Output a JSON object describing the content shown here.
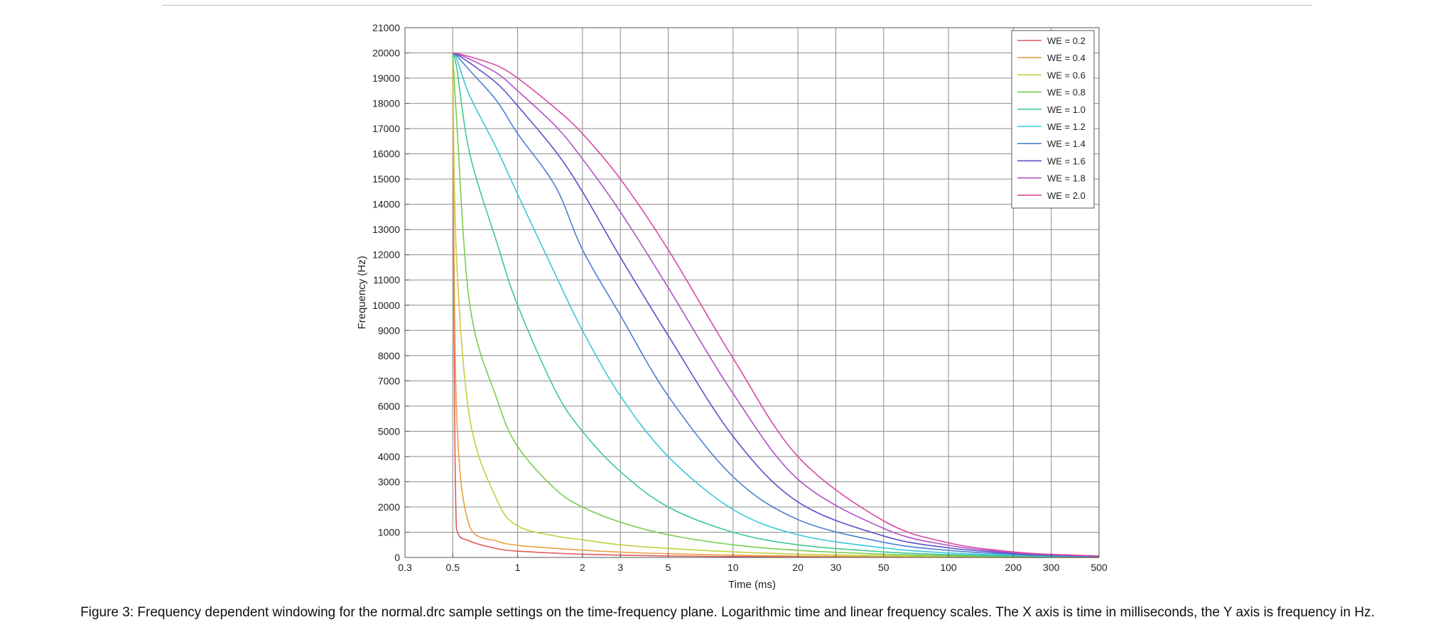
{
  "caption": "Figure 3: Frequency dependent windowing for the normal.drc sample settings on the time-frequency plane. Logarithmic time and linear frequency scales. The X axis is time in milliseconds, the Y axis is frequency in Hz.",
  "chart_data": {
    "type": "line",
    "title": "",
    "xlabel": "Time (ms)",
    "ylabel": "Frequency (Hz)",
    "xscale": "log",
    "xlim": [
      0.3,
      500
    ],
    "ylim": [
      0,
      21000
    ],
    "x_ticks": [
      0.3,
      0.5,
      1,
      2,
      3,
      5,
      10,
      20,
      30,
      50,
      100,
      200,
      300,
      500
    ],
    "x_tick_labels": [
      "0.3",
      "0.5",
      "1",
      "2",
      "3",
      "5",
      "10",
      "20",
      "30",
      "50",
      "100",
      "200",
      "300",
      "500"
    ],
    "y_ticks": [
      0,
      1000,
      2000,
      3000,
      4000,
      5000,
      6000,
      7000,
      8000,
      9000,
      10000,
      11000,
      12000,
      13000,
      14000,
      15000,
      16000,
      17000,
      18000,
      19000,
      20000,
      21000
    ],
    "y_tick_labels": [
      "0",
      "1000",
      "2000",
      "3000",
      "4000",
      "5000",
      "6000",
      "7000",
      "8000",
      "9000",
      "10000",
      "11000",
      "12000",
      "13000",
      "14000",
      "15000",
      "16000",
      "17000",
      "18000",
      "19000",
      "20000",
      "21000"
    ],
    "grid": true,
    "legend_position": "top-right",
    "x": [
      0.5,
      0.52,
      0.6,
      0.8,
      1,
      1.5,
      2,
      3,
      5,
      10,
      20,
      50,
      100,
      200,
      300,
      500
    ],
    "series": [
      {
        "name": "WE = 0.2",
        "color": "#e05a5a",
        "values": [
          20000,
          1150,
          650,
          350,
          250,
          170,
          130,
          90,
          60,
          35,
          20,
          10,
          6,
          3,
          2,
          1
        ]
      },
      {
        "name": "WE = 0.4",
        "color": "#e8a040",
        "values": [
          20000,
          6000,
          1200,
          650,
          480,
          360,
          290,
          210,
          150,
          90,
          55,
          28,
          15,
          8,
          5,
          3
        ]
      },
      {
        "name": "WE = 0.6",
        "color": "#c4d040",
        "values": [
          20000,
          12000,
          5500,
          2300,
          1250,
          850,
          700,
          500,
          360,
          220,
          130,
          65,
          35,
          18,
          12,
          7
        ]
      },
      {
        "name": "WE = 0.8",
        "color": "#7acc50",
        "values": [
          20000,
          17500,
          10000,
          6300,
          4400,
          2700,
          2000,
          1400,
          900,
          500,
          280,
          130,
          70,
          35,
          22,
          13
        ]
      },
      {
        "name": "WE = 1.0",
        "color": "#40c890",
        "values": [
          20000,
          19500,
          16000,
          12500,
          10000,
          6600,
          5000,
          3400,
          2000,
          1000,
          500,
          220,
          110,
          55,
          35,
          20
        ]
      },
      {
        "name": "WE = 1.2",
        "color": "#38c8d8",
        "values": [
          20000,
          19800,
          18300,
          16200,
          14400,
          11200,
          9000,
          6400,
          4000,
          1900,
          900,
          380,
          180,
          85,
          55,
          30
        ]
      },
      {
        "name": "WE = 1.4",
        "color": "#4a80d0",
        "values": [
          20000,
          19900,
          19300,
          18100,
          16800,
          14700,
          12200,
          9600,
          6400,
          3200,
          1500,
          600,
          280,
          120,
          75,
          40
        ]
      },
      {
        "name": "WE = 1.6",
        "color": "#5a50c8",
        "values": [
          20000,
          19950,
          19600,
          18800,
          17900,
          16100,
          14500,
          11900,
          8800,
          4800,
          2200,
          850,
          380,
          160,
          95,
          50
        ]
      },
      {
        "name": "WE = 1.8",
        "color": "#b050c8",
        "values": [
          20000,
          19970,
          19750,
          19200,
          18500,
          17100,
          15800,
          13700,
          10700,
          6500,
          3100,
          1150,
          480,
          190,
          110,
          55
        ]
      },
      {
        "name": "WE = 2.0",
        "color": "#d84aa0",
        "values": [
          20000,
          19980,
          19850,
          19500,
          19000,
          17800,
          16800,
          15000,
          12200,
          7900,
          4000,
          1450,
          580,
          220,
          125,
          60
        ]
      }
    ]
  }
}
